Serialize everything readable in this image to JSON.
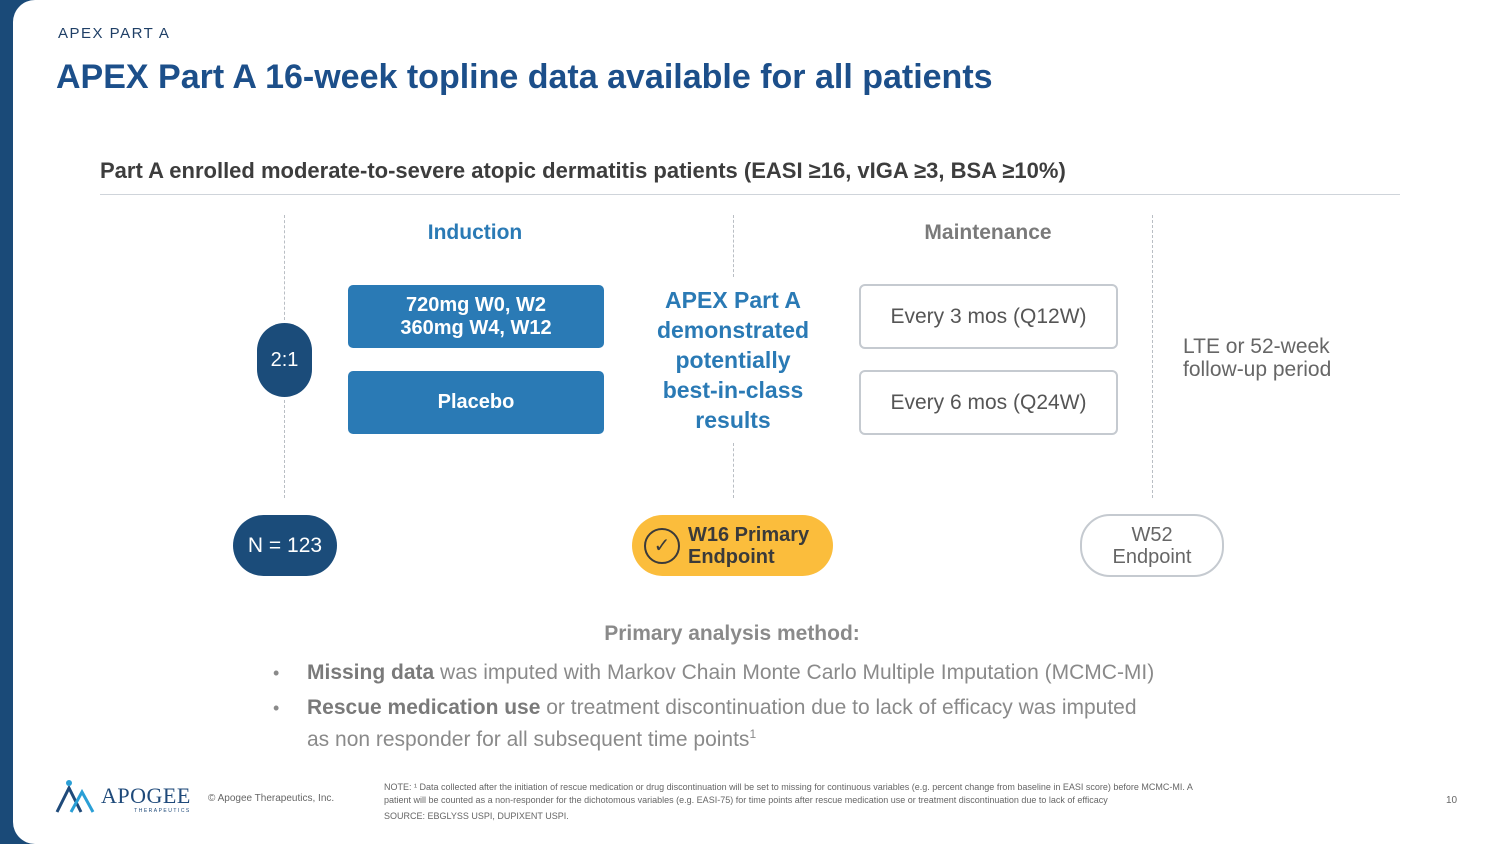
{
  "header": {
    "kicker": "APEX PART A",
    "title": "APEX Part A 16-week topline data available for all patients"
  },
  "subtitle": "Part A enrolled moderate-to-severe atopic dermatitis patients (EASI ≥16, vIGA ≥3, BSA ≥10%)",
  "diagram": {
    "induction_label": "Induction",
    "maintenance_label": "Maintenance",
    "ratio": "2:1",
    "induction_arm_line1": "720mg W0, W2",
    "induction_arm_line2": "360mg W4, W12",
    "placebo_arm": "Placebo",
    "center_lines": [
      "APEX Part A",
      "demonstrated",
      "potentially",
      "best-in-class",
      "results"
    ],
    "maint_q12w": "Every 3 mos (Q12W)",
    "maint_q24w": "Every 6 mos (Q24W)",
    "lte_line1": "LTE or 52-week",
    "lte_line2": "follow-up period",
    "n_label": "N = 123",
    "w16_line1": "W16 Primary",
    "w16_line2": "Endpoint",
    "w52_line1": "W52",
    "w52_line2": "Endpoint",
    "colors": {
      "navy": "#1b4c7a",
      "blue": "#2a7ab5",
      "gold": "#fbbd3c",
      "maint_head": "#7a7a7a"
    }
  },
  "analysis": {
    "heading": "Primary analysis method:",
    "bullets": [
      {
        "bold": "Missing data",
        "text": " was imputed with Markov Chain Monte Carlo Multiple Imputation (MCMC-MI)"
      },
      {
        "bold": "Rescue medication use",
        "text": " or treatment discontinuation due to lack of efficacy was imputed",
        "line2": "as non responder for all subsequent time points",
        "sup": "1"
      }
    ]
  },
  "footer": {
    "logo_word": "APOGEE",
    "logo_sub": "THERAPEUTICS",
    "copyright": "© Apogee Therapeutics, Inc.",
    "note_line1": "NOTE: ¹ Data collected after the initiation of rescue medication or drug discontinuation will be set to missing for continuous variables (e.g. percent change from baseline in EASI score) before MCMC-MI. A",
    "note_line2": "patient will be counted as a non-responder for the dichotomous variables (e.g. EASI-75) for time points after rescue medication use or treatment discontinuation due to lack of efficacy",
    "source": "SOURCE: EBGLYSS USPI, DUPIXENT USPI.",
    "page_number": "10"
  }
}
